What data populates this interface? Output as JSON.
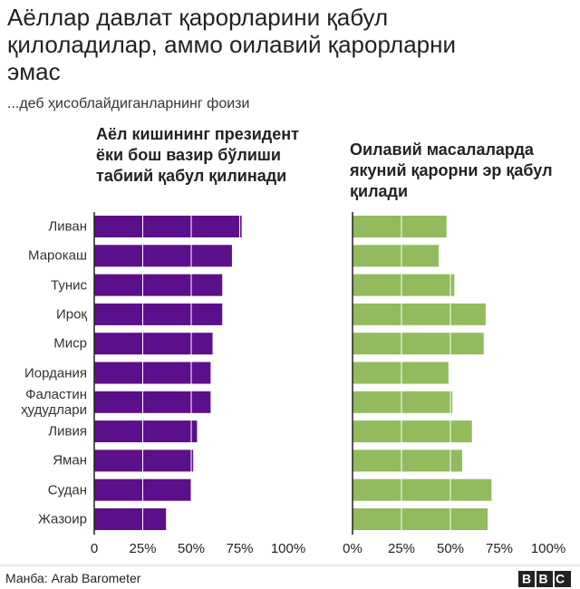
{
  "title": "Аёллар давлат қарорларини қабул қилоладилар, аммо оилавий қарорларни эмас",
  "subtitle": "...деб ҳисоблайдиганларнинг фоизи",
  "source": "Манба: Arab Barometer",
  "logo": "BBC",
  "chart_data": [
    {
      "type": "bar",
      "orientation": "horizontal",
      "title": "Аёл кишининг президент ёки бош вазир бўлиши табиий қабул қилинади",
      "categories": [
        "Ливан",
        "Марокаш",
        "Тунис",
        "Ироқ",
        "Миср",
        "Иордания",
        "Фаластин ҳудудлари",
        "Ливия",
        "Яман",
        "Судан",
        "Жазоир"
      ],
      "values": [
        76,
        71,
        66,
        66,
        61,
        60,
        60,
        53,
        51,
        50,
        37
      ],
      "color": "#5c0f8b",
      "xlim": [
        0,
        100
      ],
      "xticks": [
        0,
        {
          "value": 25,
          "label": "25%"
        },
        {
          "value": 50,
          "label": "50%"
        },
        {
          "value": 75,
          "label": "75%"
        },
        {
          "value": 100,
          "label": "100%"
        }
      ],
      "grid": true
    },
    {
      "type": "bar",
      "orientation": "horizontal",
      "title": "Оилавий масалаларда якуний қарорни эр қабул қилади",
      "values": [
        48,
        44,
        52,
        68,
        67,
        49,
        51,
        61,
        56,
        71,
        69
      ],
      "color": "#91bb5d",
      "xlim": [
        0,
        100
      ],
      "xticks": [
        {
          "value": 0,
          "label": "0%"
        },
        {
          "value": 25,
          "label": "25%"
        },
        {
          "value": 50,
          "label": "50%"
        },
        {
          "value": 75,
          "label": "75%"
        },
        {
          "value": 100,
          "label": "100%"
        }
      ],
      "grid": true
    }
  ]
}
